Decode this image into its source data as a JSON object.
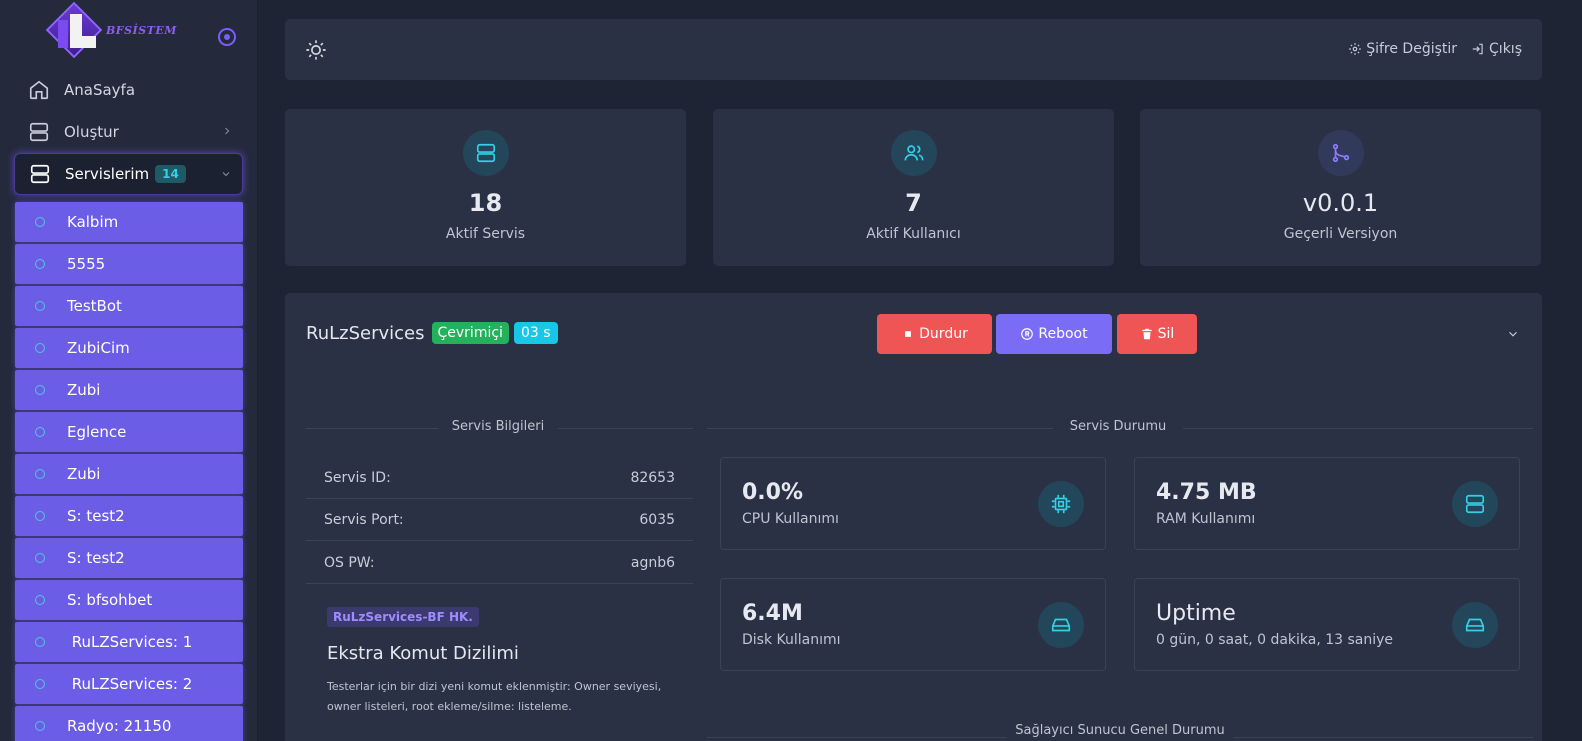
{
  "brand": {
    "logo_text": "BFSİSTEM"
  },
  "sidebar": {
    "nav": [
      {
        "label": "AnaSayfa",
        "icon": "home-icon"
      },
      {
        "label": "Oluştur",
        "icon": "server-icon"
      },
      {
        "label": "Servislerim",
        "icon": "server-icon",
        "badge": "14"
      }
    ],
    "services": [
      "Kalbim",
      "5555",
      "TestBot",
      "ZubiCim",
      "Zubi",
      "Eglence",
      "Zubi",
      "S: test2",
      "S: test2",
      "S: bfsohbet",
      " RuLZServices: 1",
      " RuLZServices: 2",
      "Radyo: 21150"
    ]
  },
  "topbar": {
    "change_password": "Şifre Değiştir",
    "logout": "Çıkış"
  },
  "stats": [
    {
      "value": "18",
      "label": "Aktif Servis",
      "icon": "server-icon"
    },
    {
      "value": "7",
      "label": "Aktif Kullanıcı",
      "icon": "users-icon"
    },
    {
      "value": "v0.0.1",
      "label": "Geçerli Versiyon",
      "icon": "git-branch-icon"
    }
  ],
  "service": {
    "name": "RuLzServices",
    "status": "Çevrimiçi",
    "time": "03 s",
    "buttons": {
      "stop": "Durdur",
      "reboot": "Reboot",
      "delete": "Sil"
    },
    "info_title": "Servis Bilgileri",
    "status_title": "Servis Durumu",
    "info_rows": [
      {
        "label": "Servis ID:",
        "value": "82653"
      },
      {
        "label": "Servis Port:",
        "value": "6035"
      },
      {
        "label": "OS PW:",
        "value": "agnb6"
      }
    ],
    "extra_badge": "RuLzServices-BF HK.",
    "extra_title": "Ekstra Komut Dizilimi",
    "extra_desc": "Testerlar için bir dizi yeni komut eklenmiştir: Owner seviyesi, owner listeleri, root ekleme/silme: listeleme.",
    "metrics": [
      {
        "value": "0.0%",
        "label": "CPU Kullanımı",
        "icon": "cpu-icon"
      },
      {
        "value": "4.75 MB",
        "label": "RAM Kullanımı",
        "icon": "server-icon"
      },
      {
        "value": "6.4M",
        "label": "Disk Kullanımı",
        "icon": "hard-drive-icon"
      },
      {
        "value": "Uptime",
        "label": "0 gün, 0 saat, 0 dakika, 13 saniye",
        "icon": "hard-drive-icon"
      }
    ],
    "provider_title": "Sağlayıcı Sunucu Genel Durumu"
  },
  "colors": {
    "accent": "#7b6cf6",
    "danger": "#ef5555",
    "success": "#23b15b",
    "info": "#18c6e6",
    "cyan": "#35d0e6"
  }
}
